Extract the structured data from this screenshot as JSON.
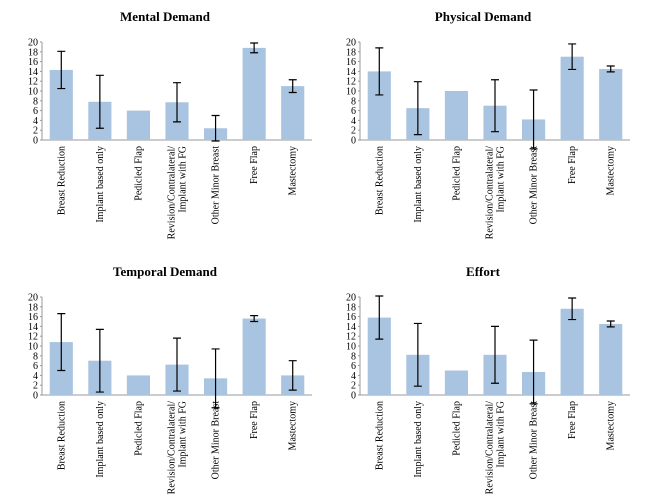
{
  "chart_data": [
    {
      "type": "bar",
      "title": "Mental Demand",
      "categories": [
        "Breast Reduction",
        "Implant based only",
        "Pedicled Flap",
        "Revision/Contralateral/\nImplant with FG",
        "Other Minor Breast",
        "Free Flap",
        "Mastectomy"
      ],
      "values": [
        14.3,
        7.8,
        6,
        7.7,
        2.4,
        18.8,
        11
      ],
      "errors": [
        3.8,
        5.4,
        null,
        4,
        2.6,
        1,
        1.3
      ],
      "color": "#a9c4e0",
      "ylim": [
        0,
        20
      ],
      "yticks": [
        0,
        2,
        4,
        6,
        8,
        10,
        12,
        14,
        16,
        18,
        20
      ]
    },
    {
      "type": "bar",
      "title": "Physical Demand",
      "categories": [
        "Breast Reduction",
        "Implant based only",
        "Pedicled Flap",
        "Revision/Contralateral/\nImplant with FG",
        "Other Minor Breast",
        "Free Flap",
        "Mastectomy"
      ],
      "values": [
        14,
        6.5,
        10,
        7,
        4.2,
        17,
        14.5
      ],
      "errors": [
        4.8,
        5.4,
        null,
        5.3,
        6,
        2.6,
        0.6
      ],
      "color": "#a9c4e0",
      "ylim": [
        0,
        20
      ],
      "yticks": [
        0,
        2,
        4,
        6,
        8,
        10,
        12,
        14,
        16,
        18,
        20
      ]
    },
    {
      "type": "bar",
      "title": "Temporal Demand",
      "categories": [
        "Breast Reduction",
        "Implant based only",
        "Pedicled Flap",
        "Revision/Contralateral/\nImplant with FG",
        "Other Minor Breast",
        "Free Flap",
        "Mastectomy"
      ],
      "values": [
        10.8,
        7,
        4,
        6.2,
        3.4,
        15.6,
        4
      ],
      "errors": [
        5.8,
        6.4,
        null,
        5.4,
        6,
        0.6,
        3
      ],
      "color": "#a9c4e0",
      "ylim": [
        0,
        20
      ],
      "yticks": [
        0,
        2,
        4,
        6,
        8,
        10,
        12,
        14,
        16,
        18,
        20
      ]
    },
    {
      "type": "bar",
      "title": "Effort",
      "categories": [
        "Breast Reduction",
        "Implant based only",
        "Pedicled Flap",
        "Revision/Contralateral/\nImplant with FG",
        "Other Minor Breast",
        "Free Flap",
        "Mastectomy"
      ],
      "values": [
        15.8,
        8.2,
        5,
        8.2,
        4.7,
        17.6,
        14.5
      ],
      "errors": [
        4.4,
        6.4,
        null,
        5.8,
        6.5,
        2.2,
        0.6
      ],
      "color": "#a9c4e0",
      "ylim": [
        0,
        20
      ],
      "yticks": [
        0,
        2,
        4,
        6,
        8,
        10,
        12,
        14,
        16,
        18,
        20
      ]
    }
  ]
}
